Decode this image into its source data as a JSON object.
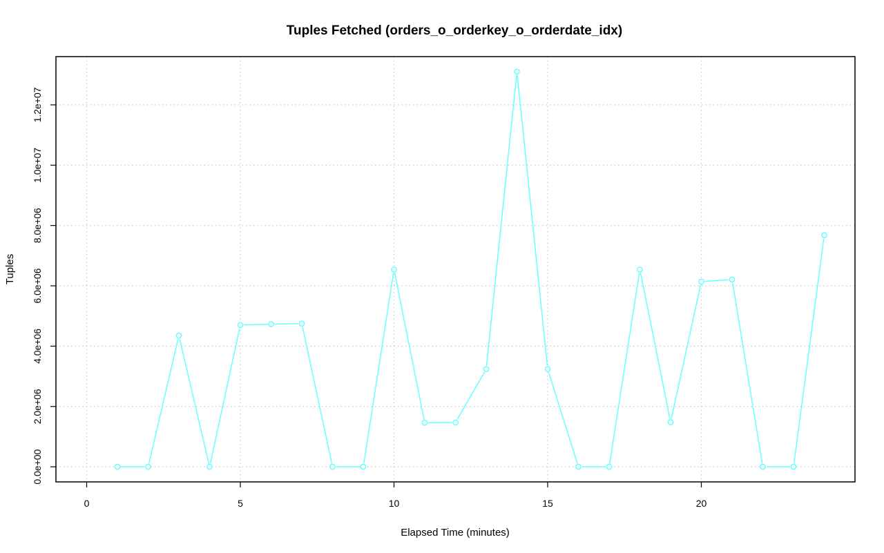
{
  "chart_data": {
    "type": "line",
    "title": "Tuples Fetched (orders_o_orderkey_o_orderdate_idx)",
    "xlabel": "Elapsed Time (minutes)",
    "ylabel": "Tuples",
    "xlim": [
      -1,
      25
    ],
    "ylim": [
      -500000,
      13600000
    ],
    "x_ticks": [
      0,
      5,
      10,
      15,
      20
    ],
    "x_tick_labels": [
      "0",
      "5",
      "10",
      "15",
      "20"
    ],
    "y_ticks": [
      0,
      2000000,
      4000000,
      6000000,
      8000000,
      10000000,
      12000000
    ],
    "y_tick_labels": [
      "0.0e+00",
      "2.0e+06",
      "4.0e+06",
      "6.0e+06",
      "8.0e+06",
      "1.0e+07",
      "1.2e+07"
    ],
    "grid": true,
    "colors": {
      "series": "#66ffff",
      "grid": "#c8c8c8",
      "axis": "#000000"
    },
    "series": [
      {
        "x": [
          1,
          2,
          3,
          4,
          5,
          6,
          7,
          8,
          9,
          10,
          11,
          12,
          13,
          14,
          15,
          16,
          17,
          18,
          19,
          20,
          21,
          22,
          23,
          24
        ],
        "values": [
          0,
          0,
          4350000,
          0,
          4700000,
          4730000,
          4750000,
          0,
          0,
          6540000,
          1460000,
          1470000,
          3240000,
          13100000,
          3240000,
          0,
          0,
          6540000,
          1480000,
          6140000,
          6210000,
          0,
          0,
          7680000
        ]
      }
    ]
  }
}
